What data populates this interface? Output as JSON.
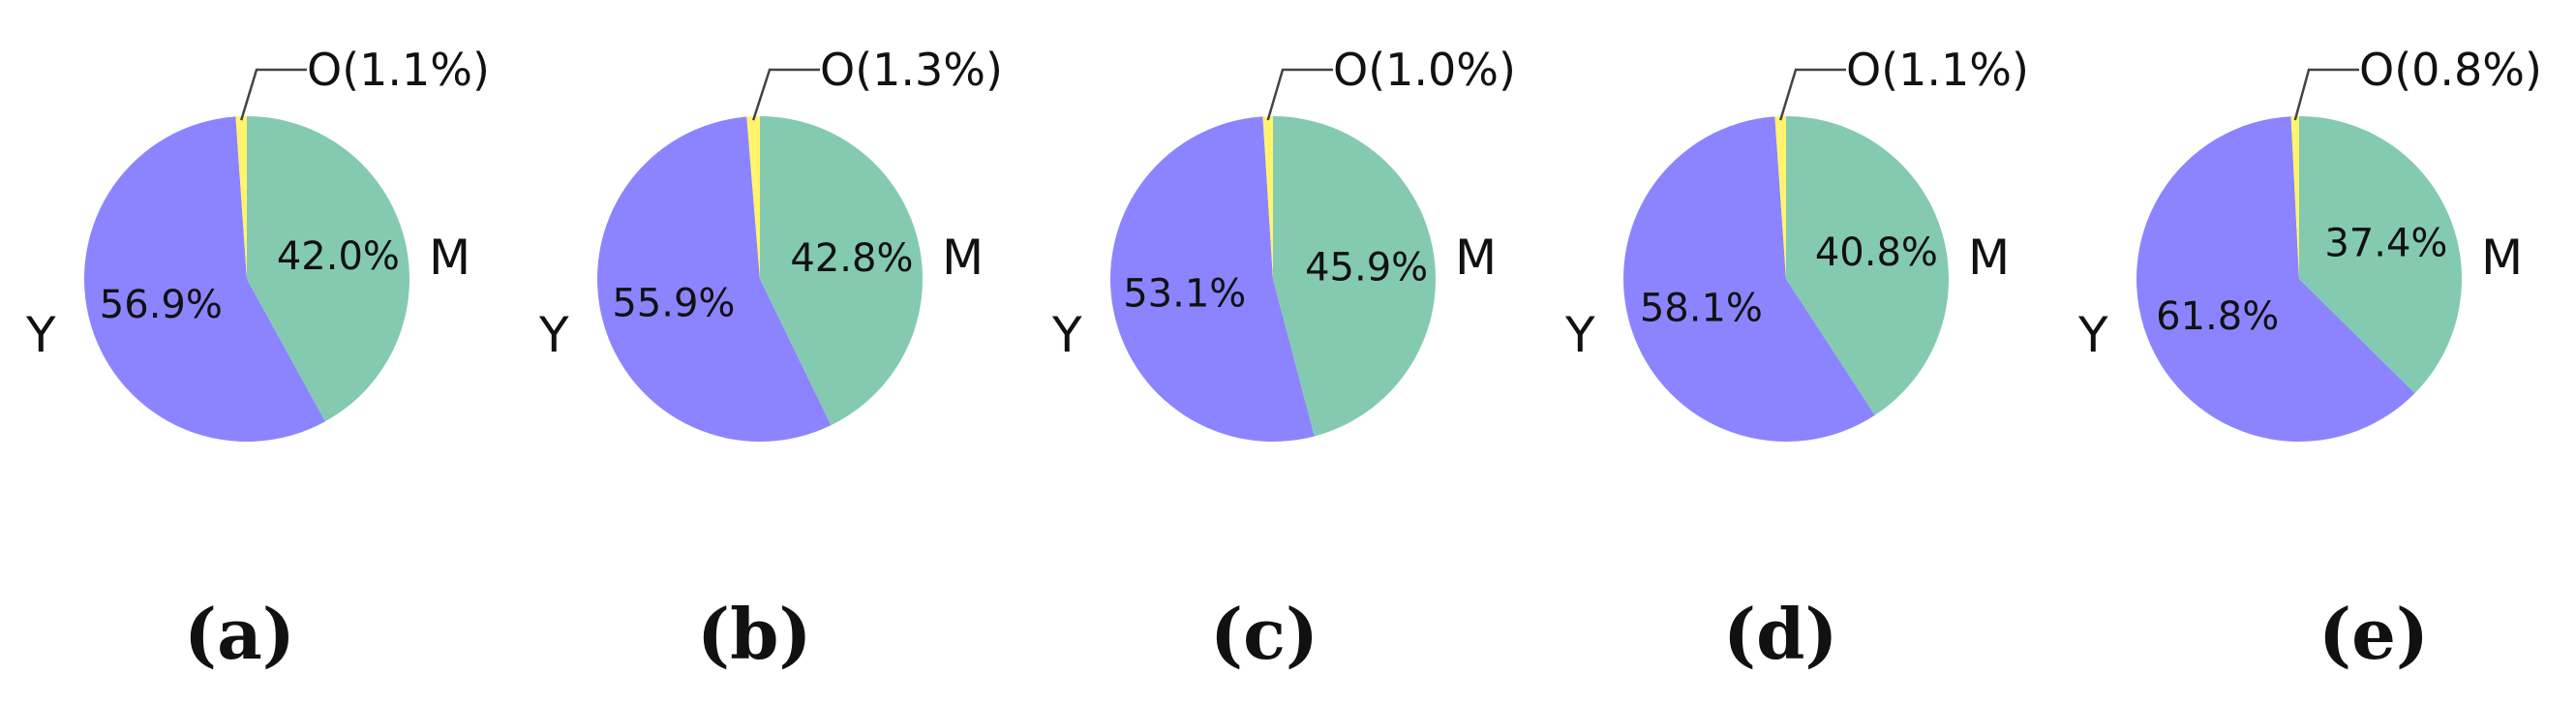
{
  "colors": {
    "Y": "#8C84FF",
    "M": "#83CAB1",
    "O": "#FFF46C"
  },
  "chart_data": [
    {
      "type": "pie",
      "panel_label": "(a)",
      "categories": [
        "Y",
        "M",
        "O"
      ],
      "values": [
        56.9,
        42.0,
        1.1
      ],
      "labels": {
        "Y": "56.9%",
        "M": "42.0%",
        "O": "O(1.1%)"
      },
      "category_labels": {
        "Y": "Y",
        "M": "M"
      }
    },
    {
      "type": "pie",
      "panel_label": "(b)",
      "categories": [
        "Y",
        "M",
        "O"
      ],
      "values": [
        55.9,
        42.8,
        1.3
      ],
      "labels": {
        "Y": "55.9%",
        "M": "42.8%",
        "O": "O(1.3%)"
      },
      "category_labels": {
        "Y": "Y",
        "M": "M"
      }
    },
    {
      "type": "pie",
      "panel_label": "(c)",
      "categories": [
        "Y",
        "M",
        "O"
      ],
      "values": [
        53.1,
        45.9,
        1.0
      ],
      "labels": {
        "Y": "53.1%",
        "M": "45.9%",
        "O": "O(1.0%)"
      },
      "category_labels": {
        "Y": "Y",
        "M": "M"
      }
    },
    {
      "type": "pie",
      "panel_label": "(d)",
      "categories": [
        "Y",
        "M",
        "O"
      ],
      "values": [
        58.1,
        40.8,
        1.1
      ],
      "labels": {
        "Y": "58.1%",
        "M": "40.8%",
        "O": "O(1.1%)"
      },
      "category_labels": {
        "Y": "Y",
        "M": "M"
      }
    },
    {
      "type": "pie",
      "panel_label": "(e)",
      "categories": [
        "Y",
        "M",
        "O"
      ],
      "values": [
        61.8,
        37.4,
        0.8
      ],
      "labels": {
        "Y": "61.8%",
        "M": "37.4%",
        "O": "O(0.8%)"
      },
      "category_labels": {
        "Y": "Y",
        "M": "M"
      }
    }
  ]
}
